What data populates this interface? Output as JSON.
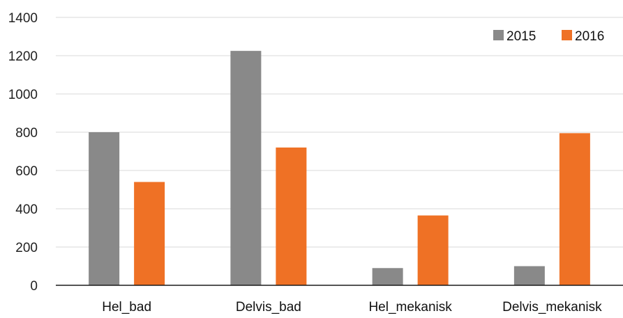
{
  "chart_data": {
    "type": "bar",
    "categories": [
      "Hel_bad",
      "Delvis_bad",
      "Hel_mekanisk",
      "Delvis_mekanisk"
    ],
    "series": [
      {
        "name": "2015",
        "values": [
          800,
          1225,
          90,
          100
        ],
        "color": "#898989"
      },
      {
        "name": "2016",
        "values": [
          540,
          720,
          365,
          795
        ],
        "color": "#ef7125"
      }
    ],
    "yticks": [
      0,
      200,
      400,
      600,
      800,
      1000,
      1200,
      1400
    ],
    "ylim": [
      0,
      1400
    ],
    "grid": true,
    "legend_position": "top-right",
    "title": "",
    "xlabel": "",
    "ylabel": ""
  }
}
